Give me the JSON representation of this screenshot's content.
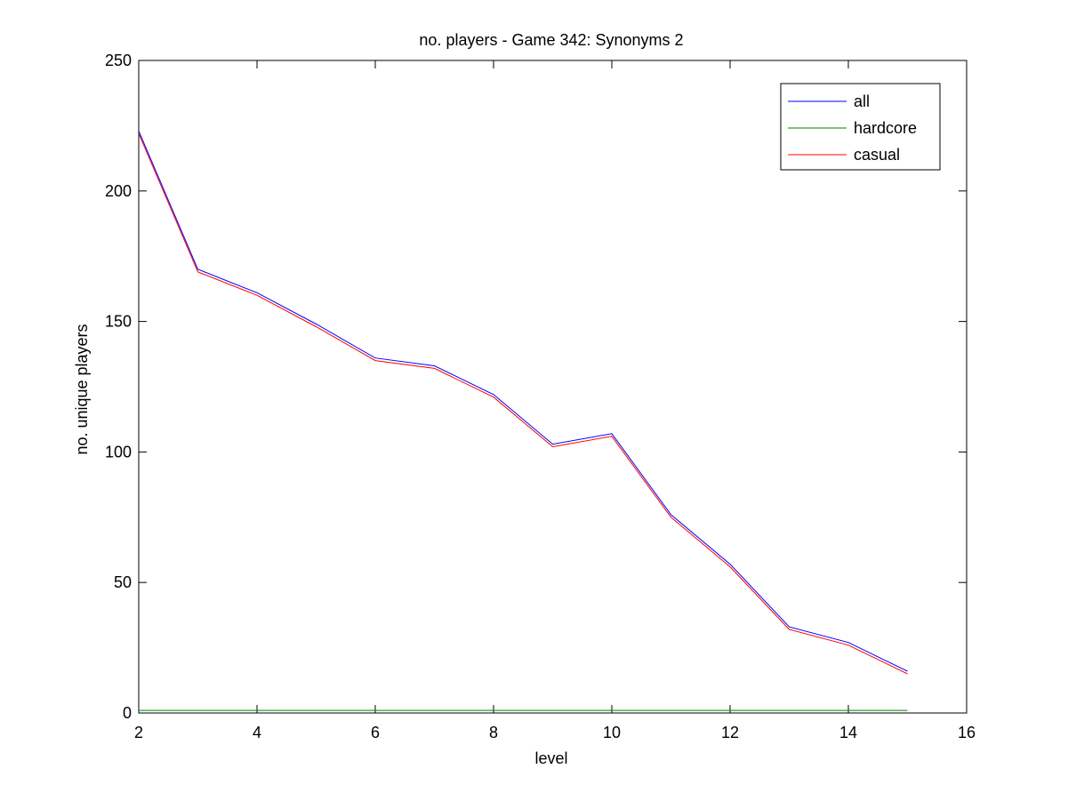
{
  "chart_data": {
    "type": "line",
    "title": "no. players - Game 342: Synonyms 2",
    "xlabel": "level",
    "ylabel": "no. unique players",
    "xlim": [
      2,
      16
    ],
    "ylim": [
      0,
      250
    ],
    "xticks": [
      2,
      4,
      6,
      8,
      10,
      12,
      14,
      16
    ],
    "yticks": [
      0,
      50,
      100,
      150,
      200,
      250
    ],
    "grid": false,
    "legend_position": "top-right",
    "x": [
      2,
      3,
      4,
      5,
      6,
      7,
      8,
      9,
      10,
      11,
      12,
      13,
      14,
      15
    ],
    "series": [
      {
        "name": "all",
        "color": "#0000ff",
        "values": [
          223,
          170,
          161,
          149,
          136,
          133,
          122,
          103,
          107,
          76,
          57,
          33,
          27,
          16
        ]
      },
      {
        "name": "hardcore",
        "color": "#008000",
        "values": [
          1,
          1,
          1,
          1,
          1,
          1,
          1,
          1,
          1,
          1,
          1,
          1,
          1,
          1
        ]
      },
      {
        "name": "casual",
        "color": "#ff0000",
        "values": [
          222,
          169,
          160,
          148,
          135,
          132,
          121,
          102,
          106,
          75,
          56,
          32,
          26,
          15
        ]
      }
    ]
  }
}
